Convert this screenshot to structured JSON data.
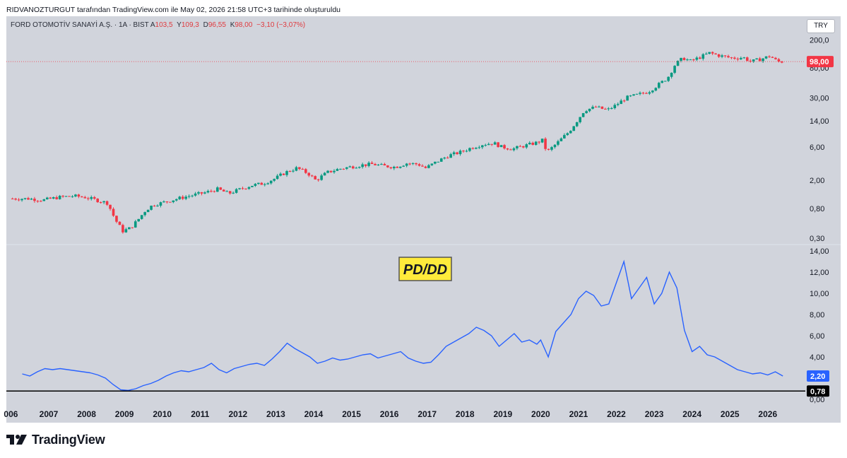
{
  "header": {
    "attribution": "RIDVANOZTURGUT tarafından TradingView.com ile May 02, 2026 21:58 UTC+3 tarihinde oluşturuldu"
  },
  "legend": {
    "symbol": "FORD OTOMOTİV SANAYİ A.Ş. · 1A · BIST",
    "open_label": "A",
    "open": "103,5",
    "high_label": "Y",
    "high": "109,3",
    "low_label": "D",
    "low": "96,55",
    "close_label": "K",
    "close": "98,00",
    "change": "−3,10 (−3,07%)"
  },
  "currency": "TRY",
  "colors": {
    "up": "#089981",
    "down": "#f23645",
    "line": "#2962ff",
    "background": "#d1d4dc"
  },
  "branding": {
    "logo_text": "TradingView"
  },
  "chart_data": [
    {
      "type": "candlestick",
      "title": "FORD OTOMOTİV SANAYİ A.Ş.",
      "scale": "log",
      "ylim": [
        0.25,
        260
      ],
      "y_ticks": [
        {
          "v": 200,
          "label": "200,0"
        },
        {
          "v": 80,
          "label": "80,00"
        },
        {
          "v": 30,
          "label": "30,00"
        },
        {
          "v": 14,
          "label": "14,00"
        },
        {
          "v": 6,
          "label": "6,00"
        },
        {
          "v": 2,
          "label": "2,00"
        },
        {
          "v": 0.8,
          "label": "0,80"
        },
        {
          "v": 0.3,
          "label": "0,30"
        }
      ],
      "last_price": {
        "value": 98.0,
        "label": "98,00"
      },
      "approximate_monthly_close": [
        [
          2006.5,
          1.1
        ],
        [
          2006.9,
          1.05
        ],
        [
          2007.3,
          1.15
        ],
        [
          2007.7,
          1.2
        ],
        [
          2008.0,
          1.15
        ],
        [
          2008.3,
          1.05
        ],
        [
          2008.6,
          0.95
        ],
        [
          2008.8,
          0.55
        ],
        [
          2009.0,
          0.38
        ],
        [
          2009.2,
          0.42
        ],
        [
          2009.4,
          0.55
        ],
        [
          2009.6,
          0.75
        ],
        [
          2009.8,
          0.9
        ],
        [
          2010.0,
          0.95
        ],
        [
          2010.3,
          1.05
        ],
        [
          2010.6,
          1.15
        ],
        [
          2010.9,
          1.25
        ],
        [
          2011.2,
          1.35
        ],
        [
          2011.5,
          1.5
        ],
        [
          2011.8,
          1.3
        ],
        [
          2012.1,
          1.5
        ],
        [
          2012.4,
          1.7
        ],
        [
          2012.7,
          1.8
        ],
        [
          2013.0,
          2.1
        ],
        [
          2013.3,
          2.6
        ],
        [
          2013.6,
          3.0
        ],
        [
          2013.9,
          2.5
        ],
        [
          2014.1,
          2.0
        ],
        [
          2014.4,
          2.6
        ],
        [
          2014.7,
          2.9
        ],
        [
          2015.0,
          3.1
        ],
        [
          2015.3,
          3.3
        ],
        [
          2015.6,
          3.4
        ],
        [
          2015.9,
          3.2
        ],
        [
          2016.2,
          3.1
        ],
        [
          2016.5,
          3.5
        ],
        [
          2016.8,
          3.4
        ],
        [
          2017.0,
          3.0
        ],
        [
          2017.3,
          3.7
        ],
        [
          2017.6,
          4.5
        ],
        [
          2017.9,
          5.0
        ],
        [
          2018.2,
          5.8
        ],
        [
          2018.5,
          6.5
        ],
        [
          2018.8,
          6.8
        ],
        [
          2019.0,
          6.0
        ],
        [
          2019.3,
          5.6
        ],
        [
          2019.6,
          6.2
        ],
        [
          2019.9,
          6.8
        ],
        [
          2020.1,
          7.5
        ],
        [
          2020.2,
          5.0
        ],
        [
          2020.5,
          7.0
        ],
        [
          2020.8,
          10.0
        ],
        [
          2021.0,
          14.0
        ],
        [
          2021.2,
          20.0
        ],
        [
          2021.5,
          22.0
        ],
        [
          2021.8,
          20.0
        ],
        [
          2022.0,
          23.0
        ],
        [
          2022.3,
          30.0
        ],
        [
          2022.6,
          33.0
        ],
        [
          2022.9,
          37.0
        ],
        [
          2023.2,
          48.0
        ],
        [
          2023.4,
          58.0
        ],
        [
          2023.6,
          90.0
        ],
        [
          2023.8,
          110.0
        ],
        [
          2024.0,
          100.0
        ],
        [
          2024.2,
          110.0
        ],
        [
          2024.5,
          130.0
        ],
        [
          2024.8,
          118.0
        ],
        [
          2025.1,
          110.0
        ],
        [
          2025.4,
          112.0
        ],
        [
          2025.6,
          98.0
        ],
        [
          2025.9,
          108.0
        ],
        [
          2026.1,
          118.0
        ],
        [
          2026.3,
          98.0
        ]
      ]
    },
    {
      "type": "line",
      "title": "PD/DD",
      "ylim": [
        0,
        14
      ],
      "y_ticks": [
        {
          "v": 14,
          "label": "14,00"
        },
        {
          "v": 12,
          "label": "12,00"
        },
        {
          "v": 10,
          "label": "10,00"
        },
        {
          "v": 8,
          "label": "8,00"
        },
        {
          "v": 6,
          "label": "6,00"
        },
        {
          "v": 4,
          "label": "4,00"
        },
        {
          "v": 0,
          "label": "0,00"
        }
      ],
      "last_value": {
        "value": 2.2,
        "label": "2,20"
      },
      "reference_line": {
        "value": 0.78,
        "label": "0,78"
      },
      "x_ticks": [
        "006",
        "2007",
        "2008",
        "2009",
        "2010",
        "2011",
        "2012",
        "2013",
        "2014",
        "2015",
        "2016",
        "2017",
        "2018",
        "2019",
        "2020",
        "2021",
        "2022",
        "2023",
        "2024",
        "2025",
        "2026"
      ],
      "series": [
        {
          "x": [
            2006.3,
            2006.5,
            2006.7,
            2006.9,
            2007.1,
            2007.3,
            2007.5,
            2007.7,
            2007.9,
            2008.1,
            2008.3,
            2008.5,
            2008.7,
            2008.9,
            2009.1,
            2009.3,
            2009.5,
            2009.7,
            2009.9,
            2010.1,
            2010.3,
            2010.5,
            2010.7,
            2010.9,
            2011.1,
            2011.3,
            2011.5,
            2011.7,
            2011.9,
            2012.1,
            2012.3,
            2012.5,
            2012.7,
            2012.9,
            2013.1,
            2013.3,
            2013.5,
            2013.7,
            2013.9,
            2014.1,
            2014.3,
            2014.5,
            2014.7,
            2014.9,
            2015.1,
            2015.3,
            2015.5,
            2015.7,
            2015.9,
            2016.1,
            2016.3,
            2016.5,
            2016.7,
            2016.9,
            2017.1,
            2017.3,
            2017.5,
            2017.7,
            2017.9,
            2018.1,
            2018.3,
            2018.5,
            2018.7,
            2018.9,
            2019.1,
            2019.3,
            2019.5,
            2019.7,
            2019.9,
            2020.0,
            2020.2,
            2020.4,
            2020.6,
            2020.8,
            2021.0,
            2021.2,
            2021.4,
            2021.6,
            2021.8,
            2022.0,
            2022.2,
            2022.4,
            2022.6,
            2022.8,
            2023.0,
            2023.2,
            2023.4,
            2023.6,
            2023.8,
            2024.0,
            2024.2,
            2024.4,
            2024.6,
            2024.8,
            2025.0,
            2025.2,
            2025.4,
            2025.6,
            2025.8,
            2026.0,
            2026.2,
            2026.4
          ],
          "y": [
            2.4,
            2.2,
            2.6,
            2.9,
            2.8,
            2.9,
            2.8,
            2.7,
            2.6,
            2.5,
            2.3,
            2.0,
            1.4,
            0.9,
            0.85,
            1.0,
            1.3,
            1.5,
            1.8,
            2.2,
            2.5,
            2.7,
            2.6,
            2.8,
            3.0,
            3.4,
            2.8,
            2.5,
            2.9,
            3.1,
            3.3,
            3.4,
            3.2,
            3.8,
            4.5,
            5.3,
            4.8,
            4.4,
            4.0,
            3.4,
            3.6,
            3.9,
            3.7,
            3.8,
            4.0,
            4.2,
            4.3,
            3.9,
            4.1,
            4.3,
            4.5,
            3.9,
            3.6,
            3.4,
            3.5,
            4.2,
            5.0,
            5.4,
            5.8,
            6.2,
            6.8,
            6.5,
            6.0,
            5.0,
            5.6,
            6.2,
            5.4,
            5.6,
            5.2,
            5.6,
            4.0,
            6.4,
            7.2,
            8.0,
            9.5,
            10.2,
            9.8,
            8.8,
            9.0,
            11.0,
            13.0,
            9.5,
            10.5,
            11.5,
            9.0,
            10.0,
            12.0,
            10.5,
            6.5,
            4.5,
            5.0,
            4.2,
            4.0,
            3.6,
            3.2,
            2.8,
            2.6,
            2.4,
            2.5,
            2.3,
            2.6,
            2.2
          ]
        }
      ]
    }
  ]
}
